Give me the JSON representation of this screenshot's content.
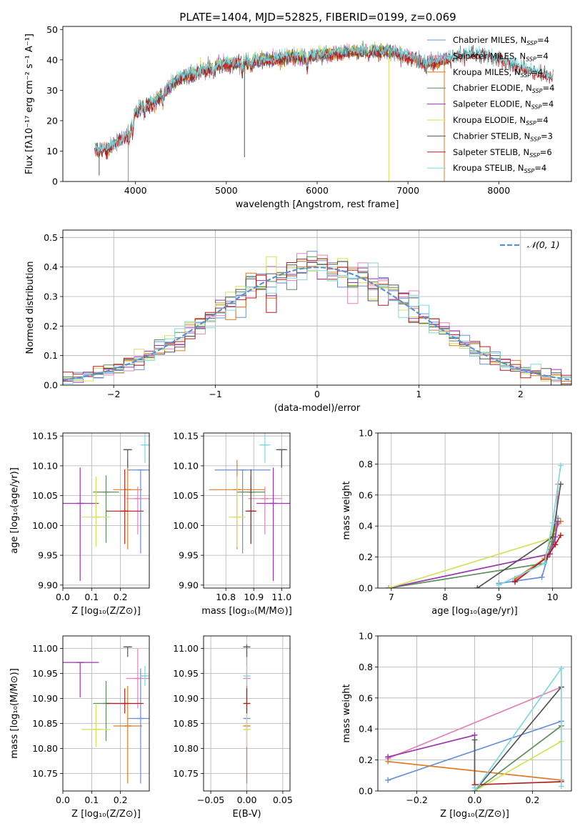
{
  "figure": {
    "title": "PLATE=1404, MJD=52825, FIBERID=0199, z=0.069"
  },
  "colors": {
    "chabrier_miles": "#6a8fd8",
    "salpeter_miles": "#e183b6",
    "kroupa_miles": "#e07b24",
    "chabrier_elodie": "#5a8f5a",
    "salpeter_elodie": "#9a36b0",
    "kroupa_elodie": "#d4e15a",
    "chabrier_stelib": "#555555",
    "salpeter_stelib": "#b01e1e",
    "kroupa_stelib": "#7fd7dd",
    "gaussian": "#5b8fd0"
  },
  "chart_data": [
    {
      "id": "spectrum",
      "type": "line",
      "xlabel": "wavelength [Angstrom, rest frame]",
      "ylabel": "Flux [fλ10⁻¹⁷ erg cm⁻² s⁻¹ A⁻¹]",
      "xlim": [
        3200,
        8800
      ],
      "ylim": [
        0,
        51
      ],
      "xticks": [
        4000,
        5000,
        6000,
        7000,
        8000
      ],
      "yticks": [
        0,
        10,
        20,
        30,
        40,
        50
      ],
      "grid": false,
      "legend": "top-right",
      "continuum": {
        "x": [
          3550,
          3600,
          3700,
          3800,
          3900,
          3950,
          4000,
          4100,
          4200,
          4300,
          4400,
          4500,
          4600,
          4700,
          4800,
          4900,
          5000,
          5100,
          5200,
          5300,
          5400,
          5500,
          5600,
          5700,
          5800,
          5900,
          6000,
          6100,
          6200,
          6300,
          6400,
          6500,
          6600,
          6700,
          6800,
          6900,
          7000,
          7100,
          7200,
          7300,
          7400,
          7500,
          7600,
          7700,
          7800,
          7900,
          8000,
          8100,
          8200,
          8300,
          8400,
          8500,
          8600,
          8700
        ],
        "y": [
          11,
          10,
          11,
          13,
          15,
          19,
          23,
          25,
          26,
          29,
          32,
          34,
          35,
          36,
          37,
          38,
          38.5,
          39,
          39.5,
          39.5,
          40,
          40,
          40.5,
          41,
          41,
          41,
          41.5,
          42,
          42,
          42.5,
          42.5,
          43,
          43,
          42.5,
          43,
          42,
          41,
          40,
          39,
          39,
          40,
          41,
          42,
          42,
          42,
          41.5,
          40,
          39.5,
          38,
          37,
          36,
          35,
          34,
          33
        ]
      },
      "series": [
        {
          "name": "Chabrier MILES, N_SSP=4",
          "label_main": "Chabrier MILES, N",
          "label_sub": "SSP",
          "label_tail": "=4",
          "color_key": "chabrier_miles",
          "range": [
            3550,
            7450
          ],
          "offset": 0.0
        },
        {
          "name": "Salpeter MILES, N_SSP=4",
          "label_main": "Salpeter MILES, N",
          "label_sub": "SSP",
          "label_tail": "=4",
          "color_key": "salpeter_miles",
          "range": [
            3550,
            7450
          ],
          "offset": 0.3
        },
        {
          "name": "Kroupa MILES, N_SSP=4",
          "label_main": "Kroupa MILES, N",
          "label_sub": "SSP",
          "label_tail": "=4",
          "color_key": "kroupa_miles",
          "range": [
            3550,
            7450
          ],
          "offset": -0.3
        },
        {
          "name": "Chabrier ELODIE, N_SSP=4",
          "label_main": "Chabrier ELODIE, N",
          "label_sub": "SSP",
          "label_tail": "=4",
          "color_key": "chabrier_elodie",
          "range": [
            3900,
            6800
          ],
          "offset": 0.2
        },
        {
          "name": "Salpeter ELODIE, N_SSP=4",
          "label_main": "Salpeter ELODIE, N",
          "label_sub": "SSP",
          "label_tail": "=4",
          "color_key": "salpeter_elodie",
          "range": [
            3900,
            6800
          ],
          "offset": -0.2
        },
        {
          "name": "Kroupa ELODIE, N_SSP=4",
          "label_main": "Kroupa ELODIE, N",
          "label_sub": "SSP",
          "label_tail": "=4",
          "color_key": "kroupa_elodie",
          "range": [
            3900,
            6800
          ],
          "offset": 0.4
        },
        {
          "name": "Chabrier STELIB, N_SSP=3",
          "label_main": "Chabrier STELIB, N",
          "label_sub": "SSP",
          "label_tail": "=3",
          "color_key": "chabrier_stelib",
          "range": [
            3550,
            8600
          ],
          "offset": 0.0
        },
        {
          "name": "Salpeter STELIB, N_SSP=6",
          "label_main": "Salpeter STELIB, N",
          "label_sub": "SSP",
          "label_tail": "=6",
          "color_key": "salpeter_stelib",
          "range": [
            3550,
            8600
          ],
          "offset": -0.4
        },
        {
          "name": "Kroupa STELIB, N_SSP=4",
          "label_main": "Kroupa STELIB, N",
          "label_sub": "SSP",
          "label_tail": "=4",
          "color_key": "kroupa_stelib",
          "range": [
            3550,
            8600
          ],
          "offset": 0.5
        }
      ]
    },
    {
      "id": "residuals",
      "type": "line",
      "xlabel": "(data-model)/error",
      "ylabel": "Normed distribution",
      "xlim": [
        -2.5,
        2.5
      ],
      "ylim": [
        0,
        0.525
      ],
      "xticks": [
        -2,
        -1,
        0,
        1,
        2
      ],
      "yticks": [
        0.0,
        0.1,
        0.2,
        0.3,
        0.4,
        0.5
      ],
      "grid": true,
      "legend": "top-right",
      "gaussian_label": "𝒩(0, 1)",
      "bins": [
        -2.5,
        2.5,
        50
      ]
    },
    {
      "id": "age_vs_Z",
      "type": "scatter",
      "xlabel": "Z [log₁₀(Z/Z⊙)]",
      "ylabel": "age  [log₁₀(age/yr)]",
      "xlim": [
        0.0,
        0.3
      ],
      "ylim": [
        9.895,
        10.155
      ],
      "xticks": [
        0.0,
        0.1,
        0.2
      ],
      "yticks": [
        9.9,
        9.95,
        10.0,
        10.05,
        10.1,
        10.15
      ],
      "grid": true,
      "points": [
        {
          "k": "chabrier_miles",
          "x": 0.27,
          "y": 10.093,
          "xerr": 0.045,
          "yerr": [
            0.14,
            0.0
          ]
        },
        {
          "k": "salpeter_miles",
          "x": 0.26,
          "y": 10.045,
          "xerr": 0.04,
          "yerr": [
            0.06,
            0.02
          ]
        },
        {
          "k": "kroupa_miles",
          "x": 0.225,
          "y": 10.06,
          "xerr": 0.05,
          "yerr": [
            0.1,
            0.05
          ]
        },
        {
          "k": "chabrier_elodie",
          "x": 0.15,
          "y": 10.056,
          "xerr": 0.045,
          "yerr": [
            0.085,
            0.028
          ]
        },
        {
          "k": "salpeter_elodie",
          "x": 0.06,
          "y": 10.037,
          "xerr": 0.065,
          "yerr": [
            0.13,
            0.06
          ]
        },
        {
          "k": "kroupa_elodie",
          "x": 0.115,
          "y": 10.014,
          "xerr": 0.05,
          "yerr": [
            0.05,
            0.068
          ]
        },
        {
          "k": "chabrier_stelib",
          "x": 0.225,
          "y": 10.127,
          "xerr": 0.015,
          "yerr": [
            0.03,
            0.0
          ]
        },
        {
          "k": "salpeter_stelib",
          "x": 0.215,
          "y": 10.024,
          "xerr": 0.065,
          "yerr": [
            0.055,
            0.07
          ]
        },
        {
          "k": "kroupa_stelib",
          "x": 0.285,
          "y": 10.135,
          "xerr": 0.015,
          "yerr": [
            0.03,
            0.02
          ]
        }
      ]
    },
    {
      "id": "age_vs_mass",
      "type": "scatter",
      "xlabel": "mass [log₁₀(M/M⊙)]",
      "ylabel": "",
      "xlim": [
        10.72,
        11.03
      ],
      "ylim": [
        9.895,
        10.155
      ],
      "xticks": [
        10.8,
        10.9,
        11.0
      ],
      "yticks": [
        9.9,
        9.95,
        10.0,
        10.05,
        10.1,
        10.15
      ],
      "grid": true,
      "points": [
        {
          "k": "chabrier_miles",
          "x": 10.86,
          "y": 10.093,
          "xerr": 0.1,
          "yerr": [
            0.14,
            0.0
          ]
        },
        {
          "k": "salpeter_miles",
          "x": 10.94,
          "y": 10.045,
          "xerr": 0.06,
          "yerr": [
            0.06,
            0.02
          ]
        },
        {
          "k": "kroupa_miles",
          "x": 10.84,
          "y": 10.06,
          "xerr": 0.1,
          "yerr": [
            0.1,
            0.05
          ]
        },
        {
          "k": "chabrier_elodie",
          "x": 10.89,
          "y": 10.056,
          "xerr": 0.05,
          "yerr": [
            0.085,
            0.028
          ]
        },
        {
          "k": "salpeter_elodie",
          "x": 10.97,
          "y": 10.037,
          "xerr": 0.06,
          "yerr": [
            0.13,
            0.06
          ]
        },
        {
          "k": "kroupa_elodie",
          "x": 10.84,
          "y": 10.014,
          "xerr": 0.03,
          "yerr": [
            0.05,
            0.068
          ]
        },
        {
          "k": "chabrier_stelib",
          "x": 11.0,
          "y": 10.127,
          "xerr": 0.02,
          "yerr": [
            0.03,
            0.0
          ]
        },
        {
          "k": "salpeter_stelib",
          "x": 10.89,
          "y": 10.024,
          "xerr": 0.02,
          "yerr": [
            0.055,
            0.07
          ]
        },
        {
          "k": "kroupa_stelib",
          "x": 10.94,
          "y": 10.135,
          "xerr": 0.02,
          "yerr": [
            0.03,
            0.02
          ]
        }
      ]
    },
    {
      "id": "weight_vs_age",
      "type": "line",
      "xlabel": "age  [log₁₀(age/yr)]",
      "ylabel": "mass weight",
      "xlim": [
        6.75,
        10.35
      ],
      "ylim": [
        0,
        1.0
      ],
      "xticks": [
        7,
        8,
        9,
        10
      ],
      "yticks": [
        0.0,
        0.2,
        0.4,
        0.6,
        0.8,
        1.0
      ],
      "grid": true,
      "series": [
        {
          "k": "chabrier_miles",
          "x": [
            9.0,
            9.8,
            9.95,
            10.1
          ],
          "y": [
            0.03,
            0.07,
            0.25,
            0.45
          ]
        },
        {
          "k": "salpeter_miles",
          "x": [
            9.3,
            9.9,
            10.05,
            10.1
          ],
          "y": [
            0.05,
            0.2,
            0.3,
            0.67
          ]
        },
        {
          "k": "kroupa_miles",
          "x": [
            9.3,
            9.85,
            10.0,
            10.15
          ],
          "y": [
            0.06,
            0.19,
            0.35,
            0.43
          ]
        },
        {
          "k": "chabrier_elodie",
          "x": [
            6.95,
            9.85,
            10.0,
            10.05
          ],
          "y": [
            0.0,
            0.16,
            0.3,
            0.42
          ]
        },
        {
          "k": "salpeter_elodie",
          "x": [
            6.95,
            9.95,
            10.05,
            10.1
          ],
          "y": [
            0.0,
            0.22,
            0.33,
            0.43
          ]
        },
        {
          "k": "kroupa_elodie",
          "x": [
            6.95,
            9.95,
            10.0,
            10.05
          ],
          "y": [
            0.0,
            0.32,
            0.36,
            0.44
          ]
        },
        {
          "k": "chabrier_stelib",
          "x": [
            8.6,
            10.0,
            10.15
          ],
          "y": [
            0.0,
            0.33,
            0.67
          ]
        },
        {
          "k": "salpeter_stelib",
          "x": [
            9.3,
            9.9,
            10.05,
            10.15
          ],
          "y": [
            0.04,
            0.2,
            0.28,
            0.34
          ]
        },
        {
          "k": "kroupa_stelib",
          "x": [
            9.0,
            9.85,
            10.0,
            10.15
          ],
          "y": [
            0.02,
            0.16,
            0.42,
            0.79
          ]
        }
      ]
    },
    {
      "id": "mass_vs_Z",
      "type": "scatter",
      "xlabel": "Z [log₁₀(Z/Z⊙)]",
      "ylabel": "mass [log₁₀(M/M⊙)]",
      "xlim": [
        0.0,
        0.3
      ],
      "ylim": [
        10.715,
        11.025
      ],
      "xticks": [
        0.0,
        0.1,
        0.2
      ],
      "yticks": [
        10.75,
        10.8,
        10.85,
        10.9,
        10.95,
        11.0
      ],
      "grid": true,
      "points": [
        {
          "k": "chabrier_miles",
          "x": 0.27,
          "y": 10.86,
          "xerr": 0.045,
          "yerr": [
            0.13,
            0.1
          ]
        },
        {
          "k": "salpeter_miles",
          "x": 0.26,
          "y": 10.94,
          "xerr": 0.04,
          "yerr": [
            0.06,
            0.06
          ]
        },
        {
          "k": "kroupa_miles",
          "x": 0.225,
          "y": 10.845,
          "xerr": 0.05,
          "yerr": [
            0.115,
            0.08
          ]
        },
        {
          "k": "chabrier_elodie",
          "x": 0.15,
          "y": 10.89,
          "xerr": 0.045,
          "yerr": [
            0.075,
            0.045
          ]
        },
        {
          "k": "salpeter_elodie",
          "x": 0.06,
          "y": 10.972,
          "xerr": 0.065,
          "yerr": [
            0.07,
            0.0
          ]
        },
        {
          "k": "kroupa_elodie",
          "x": 0.115,
          "y": 10.838,
          "xerr": 0.05,
          "yerr": [
            0.035,
            0.05
          ]
        },
        {
          "k": "chabrier_stelib",
          "x": 0.225,
          "y": 11.003,
          "xerr": 0.015,
          "yerr": [
            0.02,
            0.0
          ]
        },
        {
          "k": "salpeter_stelib",
          "x": 0.215,
          "y": 10.89,
          "xerr": 0.065,
          "yerr": [
            0.02,
            0.03
          ]
        },
        {
          "k": "kroupa_stelib",
          "x": 0.285,
          "y": 10.945,
          "xerr": 0.015,
          "yerr": [
            0.02,
            0.02
          ]
        }
      ]
    },
    {
      "id": "mass_vs_ebv",
      "type": "scatter",
      "xlabel": "E(B-V)",
      "ylabel": "",
      "xlim": [
        -0.06,
        0.06
      ],
      "ylim": [
        10.715,
        11.025
      ],
      "xticks": [
        -0.05,
        0.0,
        0.05
      ],
      "yticks": [
        10.75,
        10.8,
        10.85,
        10.9,
        10.95,
        11.0
      ],
      "grid": true,
      "points": [
        {
          "k": "chabrier_miles",
          "x": 0.0,
          "y": 10.86,
          "xerr": 0.0,
          "yerr": [
            0.13,
            0.1
          ]
        },
        {
          "k": "salpeter_miles",
          "x": 0.0,
          "y": 10.94,
          "xerr": 0.0,
          "yerr": [
            0.06,
            0.06
          ]
        },
        {
          "k": "kroupa_miles",
          "x": 0.0,
          "y": 10.845,
          "xerr": 0.0,
          "yerr": [
            0.115,
            0.08
          ]
        },
        {
          "k": "kroupa_elodie",
          "x": 0.0,
          "y": 10.838,
          "xerr": 0.0,
          "yerr": [
            0.035,
            0.05
          ]
        },
        {
          "k": "chabrier_stelib",
          "x": 0.0,
          "y": 11.003,
          "xerr": 0.0,
          "yerr": [
            0.02,
            0.005
          ]
        },
        {
          "k": "salpeter_stelib",
          "x": 0.0,
          "y": 10.89,
          "xerr": 0.0,
          "yerr": [
            0.02,
            0.03
          ]
        },
        {
          "k": "kroupa_stelib",
          "x": 0.0,
          "y": 10.945,
          "xerr": 0.0,
          "yerr": [
            0.02,
            0.02
          ]
        }
      ]
    },
    {
      "id": "weight_vs_Z",
      "type": "line",
      "xlabel": "Z [log₁₀(Z/Z⊙)]",
      "ylabel": "mass weight",
      "xlim": [
        -0.335,
        0.335
      ],
      "ylim": [
        0,
        1.0
      ],
      "xticks": [
        -0.2,
        0.0,
        0.2
      ],
      "yticks": [
        0.0,
        0.2,
        0.4,
        0.6,
        0.8,
        1.0
      ],
      "grid": true,
      "series": [
        {
          "k": "chabrier_miles",
          "x": [
            -0.3,
            0.3
          ],
          "y": [
            0.07,
            0.45
          ]
        },
        {
          "k": "salpeter_miles",
          "x": [
            -0.3,
            0.3
          ],
          "y": [
            0.21,
            0.67
          ]
        },
        {
          "k": "kroupa_miles",
          "x": [
            -0.3,
            0.3
          ],
          "y": [
            0.19,
            0.07
          ]
        },
        {
          "k": "chabrier_elodie",
          "x": [
            0.0,
            0.3
          ],
          "y": [
            0.0,
            0.42
          ]
        },
        {
          "k": "salpeter_elodie",
          "x": [
            -0.3,
            0.0
          ],
          "y": [
            0.22,
            0.36
          ]
        },
        {
          "k": "kroupa_elodie",
          "x": [
            0.0,
            0.3
          ],
          "y": [
            0.0,
            0.32
          ]
        },
        {
          "k": "chabrier_stelib",
          "x": [
            0.0,
            0.0,
            0.3
          ],
          "y": [
            0.33,
            0.0,
            0.67
          ]
        },
        {
          "k": "salpeter_stelib",
          "x": [
            0.0,
            0.3
          ],
          "y": [
            0.04,
            0.06
          ]
        },
        {
          "k": "kroupa_stelib",
          "x": [
            0.0,
            0.0,
            0.3,
            0.3
          ],
          "y": [
            0.02,
            0.0,
            0.79,
            0.03
          ]
        }
      ]
    }
  ]
}
